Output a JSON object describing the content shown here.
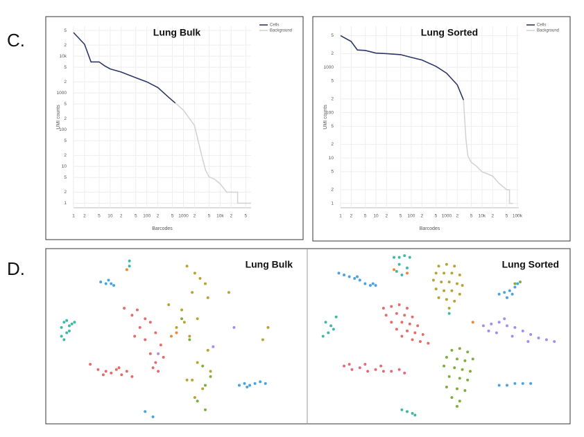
{
  "panel_labels": [
    "C.",
    "D."
  ],
  "chart_data": [
    {
      "type": "line",
      "title": "Lung Bulk",
      "xlabel": "Barcodes",
      "ylabel": "UMI counts",
      "xlog": true,
      "ylog": true,
      "grid": true,
      "legend": "upper right",
      "xlim": [
        1,
        70000
      ],
      "ylim": [
        0.75,
        65000
      ],
      "xticks": [
        1,
        2,
        5,
        10,
        {
          "value": 20,
          "label": "2"
        },
        {
          "value": 50,
          "label": "5"
        },
        100,
        {
          "value": 200,
          "label": "2"
        },
        {
          "value": 500,
          "label": "5"
        },
        1000,
        {
          "value": 2000,
          "label": "2"
        },
        {
          "value": 5000,
          "label": "5"
        },
        {
          "value": 10000,
          "label": "10k"
        },
        {
          "value": 20000,
          "label": "2"
        },
        {
          "value": 50000,
          "label": "5"
        }
      ],
      "yticks": [
        1,
        2,
        5,
        10,
        {
          "value": 20,
          "label": "2"
        },
        {
          "value": 50,
          "label": "5"
        },
        100,
        {
          "value": 200,
          "label": "2"
        },
        {
          "value": 500,
          "label": "5"
        },
        1000,
        {
          "value": 2000,
          "label": "2"
        },
        {
          "value": 5000,
          "label": "5"
        },
        {
          "value": 10000,
          "label": "10k"
        },
        {
          "value": 20000,
          "label": "2"
        },
        {
          "value": 50000,
          "label": "5"
        }
      ],
      "series": [
        {
          "name": "Cells",
          "color": "#2b3566",
          "x": [
            1,
            2,
            3,
            5,
            7,
            10,
            20,
            50,
            100,
            200,
            400,
            600
          ],
          "values": [
            44000,
            21000,
            7000,
            7000,
            5500,
            4500,
            3700,
            2600,
            2000,
            1400,
            750,
            530
          ]
        },
        {
          "name": "Background",
          "color": "#d4d4d4",
          "x": [
            600,
            1000,
            2000,
            3000,
            4000,
            5000,
            7000,
            10000,
            15000,
            30000,
            30000,
            50000,
            70000
          ],
          "values": [
            530,
            340,
            130,
            24,
            8,
            5.2,
            4.5,
            3.4,
            2,
            2,
            1,
            1,
            1
          ]
        }
      ]
    },
    {
      "type": "line",
      "title": "Lung Sorted",
      "xlabel": "Barcodes",
      "ylabel": "UMI counts",
      "xlog": true,
      "ylog": true,
      "grid": true,
      "legend": "upper right",
      "xlim": [
        1,
        110000
      ],
      "ylim": [
        0.8,
        8000
      ],
      "xticks": [
        1,
        2,
        5,
        10,
        {
          "value": 20,
          "label": "2"
        },
        {
          "value": 50,
          "label": "5"
        },
        100,
        {
          "value": 200,
          "label": "2"
        },
        {
          "value": 500,
          "label": "5"
        },
        1000,
        {
          "value": 2000,
          "label": "2"
        },
        {
          "value": 5000,
          "label": "5"
        },
        {
          "value": 10000,
          "label": "10k"
        },
        {
          "value": 20000,
          "label": "2"
        },
        {
          "value": 50000,
          "label": "5"
        },
        {
          "value": 100000,
          "label": "100k"
        }
      ],
      "yticks": [
        1,
        2,
        5,
        10,
        {
          "value": 20,
          "label": "2"
        },
        {
          "value": 50,
          "label": "5"
        },
        100,
        {
          "value": 200,
          "label": "2"
        },
        {
          "value": 500,
          "label": "5"
        },
        1000,
        {
          "value": 2000,
          "label": "2"
        },
        {
          "value": 5000,
          "label": "5"
        }
      ],
      "series": [
        {
          "name": "Cells",
          "color": "#2b3566",
          "x": [
            1,
            2,
            3,
            5,
            10,
            20,
            50,
            100,
            200,
            500,
            1000,
            2000,
            3000
          ],
          "values": [
            5000,
            3700,
            2400,
            2350,
            2050,
            2000,
            1900,
            1650,
            1450,
            1050,
            740,
            410,
            190
          ]
        },
        {
          "name": "Background",
          "color": "#d4d4d4",
          "x": [
            3000,
            3500,
            4000,
            5000,
            7000,
            10000,
            20000,
            30000,
            50000,
            60000,
            60000,
            75000
          ],
          "values": [
            190,
            27,
            11,
            8,
            6.6,
            5,
            4,
            2.8,
            2,
            2,
            1,
            1
          ]
        }
      ]
    },
    {
      "type": "scatter",
      "title": "Lung Bulk",
      "xlim": [
        0,
        100
      ],
      "ylim": [
        0,
        100
      ],
      "series": [
        {
          "color": "#40b8a8",
          "x": [
            6,
            7,
            8,
            9,
            6,
            10,
            8,
            7,
            9,
            11,
            32,
            32
          ],
          "values": [
            55,
            58,
            52,
            56,
            50,
            57,
            59,
            48,
            53,
            58,
            93,
            90
          ]
        },
        {
          "color": "#4aa3e0",
          "x": [
            21,
            23,
            25,
            24,
            26,
            74,
            76,
            78,
            80,
            82,
            84,
            77,
            41,
            38
          ],
          "values": [
            81,
            80,
            80,
            82,
            79,
            22,
            23,
            22,
            23,
            24,
            23,
            21,
            4,
            7
          ]
        },
        {
          "color": "#e36d6b",
          "x": [
            30,
            33,
            35,
            38,
            36,
            40,
            42,
            34,
            38,
            44,
            40,
            42,
            45,
            43,
            41,
            17,
            20,
            23,
            25,
            27,
            29,
            31,
            33,
            22,
            28
          ],
          "values": [
            66,
            62,
            65,
            60,
            55,
            58,
            52,
            50,
            48,
            45,
            40,
            35,
            38,
            30,
            32,
            34,
            31,
            30,
            29,
            31,
            28,
            30,
            27,
            28,
            32
          ]
        },
        {
          "color": "#b8a335",
          "x": [
            54,
            57,
            59,
            61,
            56,
            62,
            47,
            52,
            58,
            53,
            50,
            55,
            62,
            58,
            63,
            56,
            60,
            57,
            54,
            70,
            85,
            83
          ],
          "values": [
            90,
            86,
            83,
            80,
            75,
            72,
            68,
            65,
            60,
            58,
            55,
            50,
            42,
            35,
            30,
            25,
            20,
            15,
            25,
            75,
            55,
            48
          ]
        },
        {
          "color": "#7fae3c",
          "x": [
            52,
            55,
            60,
            63,
            61,
            58,
            61
          ],
          "values": [
            60,
            48,
            33,
            27,
            22,
            13,
            8
          ]
        },
        {
          "color": "#a68cf0",
          "x": [
            43,
            64,
            72
          ],
          "values": [
            40,
            44,
            55
          ]
        },
        {
          "color": "#e8893a",
          "x": [
            50,
            48,
            31
          ],
          "values": [
            52,
            50,
            88
          ]
        }
      ]
    },
    {
      "type": "scatter",
      "title": "Lung Sorted",
      "xlim": [
        0,
        100
      ],
      "ylim": [
        0,
        100
      ],
      "series": [
        {
          "color": "#4aa3e0",
          "x": [
            12,
            14,
            16,
            18,
            20,
            22,
            24,
            25,
            26,
            19,
            73,
            75,
            77,
            79,
            80,
            76,
            78,
            73,
            76,
            79,
            82,
            85
          ],
          "values": [
            86,
            85,
            84,
            83,
            82,
            80,
            79,
            80,
            79,
            84,
            74,
            75,
            76,
            78,
            80,
            72,
            74,
            22,
            22,
            23,
            23,
            23
          ]
        },
        {
          "color": "#40b8a8",
          "x": [
            33,
            35,
            37,
            39,
            35,
            34,
            36,
            38,
            7,
            9,
            8,
            10,
            11,
            6,
            36,
            38,
            40,
            41,
            54
          ],
          "values": [
            95,
            95,
            96,
            95,
            91,
            87,
            85,
            89,
            58,
            56,
            52,
            54,
            61,
            50,
            8,
            7,
            6,
            5,
            63
          ]
        },
        {
          "color": "#b8a335",
          "x": [
            50,
            53,
            56,
            49,
            52,
            55,
            58,
            48,
            51,
            54,
            57,
            59,
            49,
            52,
            55,
            58,
            50,
            53,
            56,
            54
          ],
          "values": [
            90,
            91,
            90,
            86,
            86,
            86,
            85,
            82,
            81,
            81,
            80,
            79,
            77,
            76,
            76,
            74,
            72,
            71,
            70,
            66
          ]
        },
        {
          "color": "#e36d6b",
          "x": [
            29,
            32,
            35,
            38,
            30,
            34,
            37,
            40,
            32,
            36,
            39,
            42,
            34,
            38,
            41,
            44,
            36,
            40,
            43,
            46
          ],
          "values": [
            66,
            67,
            68,
            66,
            62,
            63,
            62,
            61,
            58,
            58,
            57,
            56,
            54,
            53,
            52,
            51,
            50,
            48,
            47,
            46
          ]
        },
        {
          "color": "#e36b7c",
          "x": [
            14,
            17,
            20,
            23,
            26,
            29,
            32,
            35,
            37,
            16,
            22,
            28
          ],
          "values": [
            33,
            31,
            32,
            30,
            31,
            30,
            30,
            31,
            29,
            34,
            34,
            33
          ]
        },
        {
          "color": "#7fae3c",
          "x": [
            55,
            58,
            61,
            53,
            57,
            60,
            63,
            52,
            56,
            59,
            62,
            54,
            58,
            61,
            53,
            57,
            60,
            55,
            58,
            57,
            79,
            81
          ],
          "values": [
            42,
            43,
            41,
            38,
            37,
            36,
            37,
            33,
            32,
            31,
            30,
            27,
            26,
            25,
            21,
            20,
            19,
            15,
            13,
            10,
            80,
            81
          ]
        },
        {
          "color": "#a68cf0",
          "x": [
            67,
            70,
            73,
            76,
            79,
            82,
            85,
            88,
            91,
            94,
            72,
            78,
            84,
            75,
            69
          ],
          "values": [
            56,
            57,
            58,
            56,
            55,
            53,
            51,
            49,
            48,
            47,
            52,
            50,
            47,
            60,
            53
          ]
        },
        {
          "color": "#e8893a",
          "x": [
            33,
            38,
            63
          ],
          "values": [
            88,
            86,
            58
          ]
        }
      ]
    }
  ]
}
